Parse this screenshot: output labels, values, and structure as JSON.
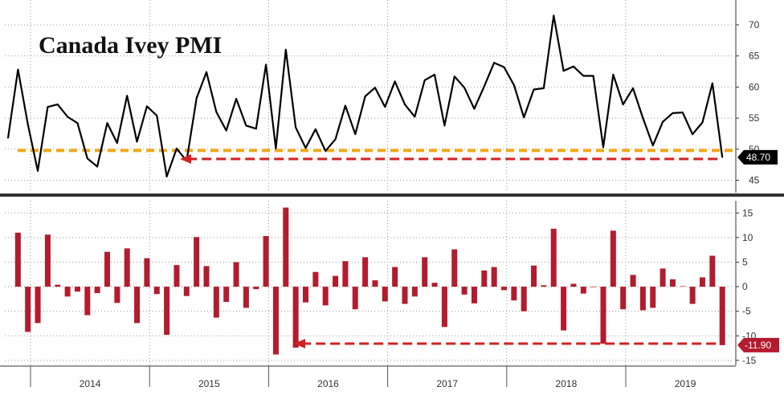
{
  "chart_data": [
    {
      "type": "line",
      "title": "Canada Ivey PMI",
      "ylim": [
        43,
        74
      ],
      "yticks": [
        45,
        50,
        55,
        60,
        65,
        70
      ],
      "threshold": 49.8,
      "last_value_label": "48.70",
      "series": [
        {
          "values": [
            51.8,
            62.8,
            54.0,
            46.5,
            56.8,
            57.2,
            55.2,
            54.2,
            48.5,
            47.2,
            54.2,
            51.0,
            58.6,
            51.2,
            56.9,
            55.4,
            45.6,
            50.1,
            48.1,
            58.2,
            62.4,
            56.0,
            53.0,
            58.1,
            53.8,
            53.3,
            63.6,
            50.1,
            66.0,
            53.5,
            50.2,
            53.2,
            49.7,
            51.6,
            57.0,
            52.4,
            58.5,
            59.9,
            56.8,
            60.9,
            57.2,
            55.2,
            61.1,
            62.0,
            53.8,
            61.7,
            59.9,
            56.5,
            60.1,
            63.9,
            63.2,
            60.3,
            55.1,
            59.6,
            59.8,
            71.5,
            62.6,
            63.3,
            61.8,
            61.8,
            50.3,
            62.0,
            57.2,
            59.8,
            55.0,
            50.6,
            54.4,
            55.8,
            55.9,
            52.4,
            54.3,
            60.6,
            48.7
          ]
        }
      ]
    },
    {
      "type": "bar",
      "ylim": [
        -16,
        17.5
      ],
      "yticks": [
        15,
        10,
        5,
        0,
        -5,
        -10,
        -15
      ],
      "last_value_label": "-11.90",
      "series": [
        {
          "values": [
            11.0,
            -9.2,
            -7.4,
            10.6,
            0.4,
            -2.0,
            -1.0,
            -5.8,
            -1.3,
            7.1,
            -3.3,
            7.8,
            -7.4,
            5.8,
            -1.5,
            -9.8,
            4.4,
            -1.9,
            10.1,
            4.2,
            -6.3,
            -3.1,
            5.0,
            -4.3,
            -0.5,
            10.3,
            -13.8,
            16.1,
            -12.4,
            -3.2,
            3.0,
            -3.8,
            2.2,
            5.2,
            -4.6,
            6.0,
            1.3,
            -3.0,
            4.0,
            -3.5,
            -2.0,
            6.0,
            0.8,
            -8.2,
            7.6,
            -1.6,
            -3.4,
            3.3,
            4.0,
            -0.7,
            -2.8,
            -5.0,
            4.3,
            0.3,
            11.8,
            -8.9,
            0.6,
            -1.4,
            -0.1,
            -11.6,
            11.4,
            -4.6,
            2.4,
            -4.8,
            -4.3,
            3.7,
            1.5,
            0.1,
            -3.5,
            1.9,
            6.3,
            -11.9
          ]
        }
      ]
    }
  ],
  "x_axis": {
    "years": [
      "2014",
      "2015",
      "2016",
      "2017",
      "2018",
      "2019"
    ]
  },
  "colors": {
    "line": "#000000",
    "bars": "#b31b2e",
    "threshold": "#f0a818",
    "arrow": "#d42020",
    "divider": "#333333",
    "grid": "#999999",
    "label_bg_line": "#000000",
    "label_bg_bar": "#b31b2e"
  }
}
